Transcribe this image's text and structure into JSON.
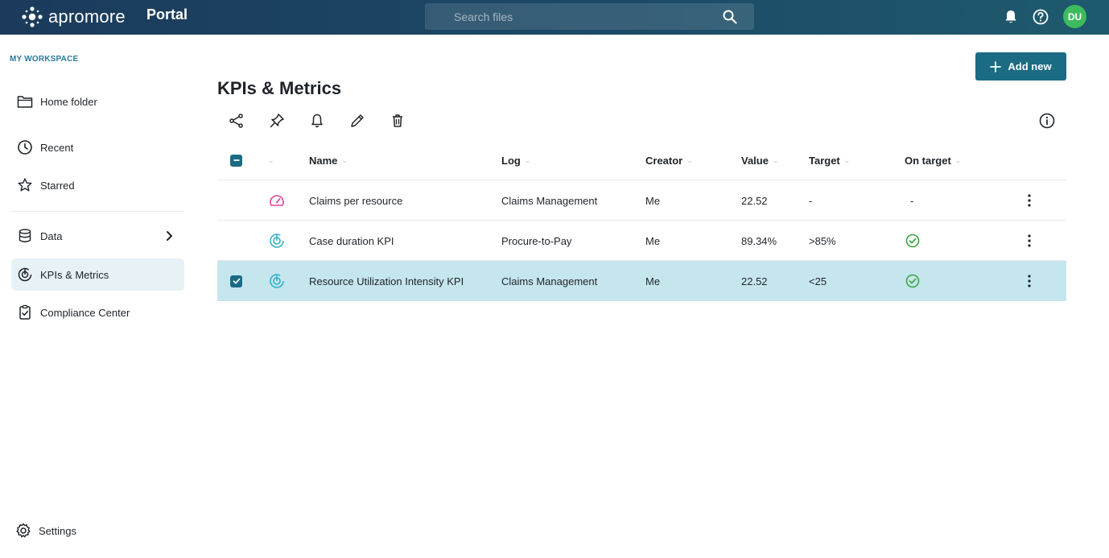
{
  "header": {
    "brand": "apromore",
    "portal": "Portal",
    "search_placeholder": "Search files",
    "avatar_initials": "DU",
    "icons": [
      "search-icon",
      "bell-icon",
      "help-icon"
    ]
  },
  "sidebar": {
    "workspace_label": "MY WORKSPACE",
    "items": [
      {
        "label": "Home folder",
        "icon": "folder-icon"
      },
      {
        "label": "Recent",
        "icon": "clock-icon"
      },
      {
        "label": "Starred",
        "icon": "star-icon"
      },
      {
        "label": "Data",
        "icon": "database-icon"
      },
      {
        "label": "KPIs & Metrics",
        "icon": "kpi-icon",
        "active": true
      },
      {
        "label": "Compliance Center",
        "icon": "clipboard-check-icon"
      }
    ],
    "settings_label": "Settings"
  },
  "main": {
    "title": "KPIs & Metrics",
    "add_button": "Add new",
    "toolbar": [
      "share-icon",
      "pin-icon",
      "bell-icon",
      "edit-icon",
      "delete-icon",
      "info-icon"
    ],
    "columns": [
      "Name",
      "Log",
      "Creator",
      "Value",
      "Target",
      "On target"
    ],
    "rows": [
      {
        "name": "Claims per resource",
        "log": "Claims Management",
        "creator": "Me",
        "value": "22.52",
        "target": "-",
        "on_target": "-",
        "icon": "gauge-icon",
        "selected": false
      },
      {
        "name": "Case duration KPI",
        "log": "Procure-to-Pay",
        "creator": "Me",
        "value": "89.34%",
        "target": ">85%",
        "on_target": "yes",
        "icon": "kpi-target-icon",
        "selected": false
      },
      {
        "name": "Resource Utilization Intensity KPI",
        "log": "Claims Management",
        "creator": "Me",
        "value": "22.52",
        "target": "<25",
        "on_target": "yes",
        "icon": "kpi-target-icon",
        "selected": true
      }
    ]
  },
  "colors": {
    "topbar": "#1c4a66",
    "accent": "#1b6b84",
    "avatar": "#3dbb5e",
    "selected_row": "#c6e6ee",
    "gauge_icon": "#e0409a",
    "kpi_icon": "#2bb3c8",
    "ok": "#3aa640"
  }
}
